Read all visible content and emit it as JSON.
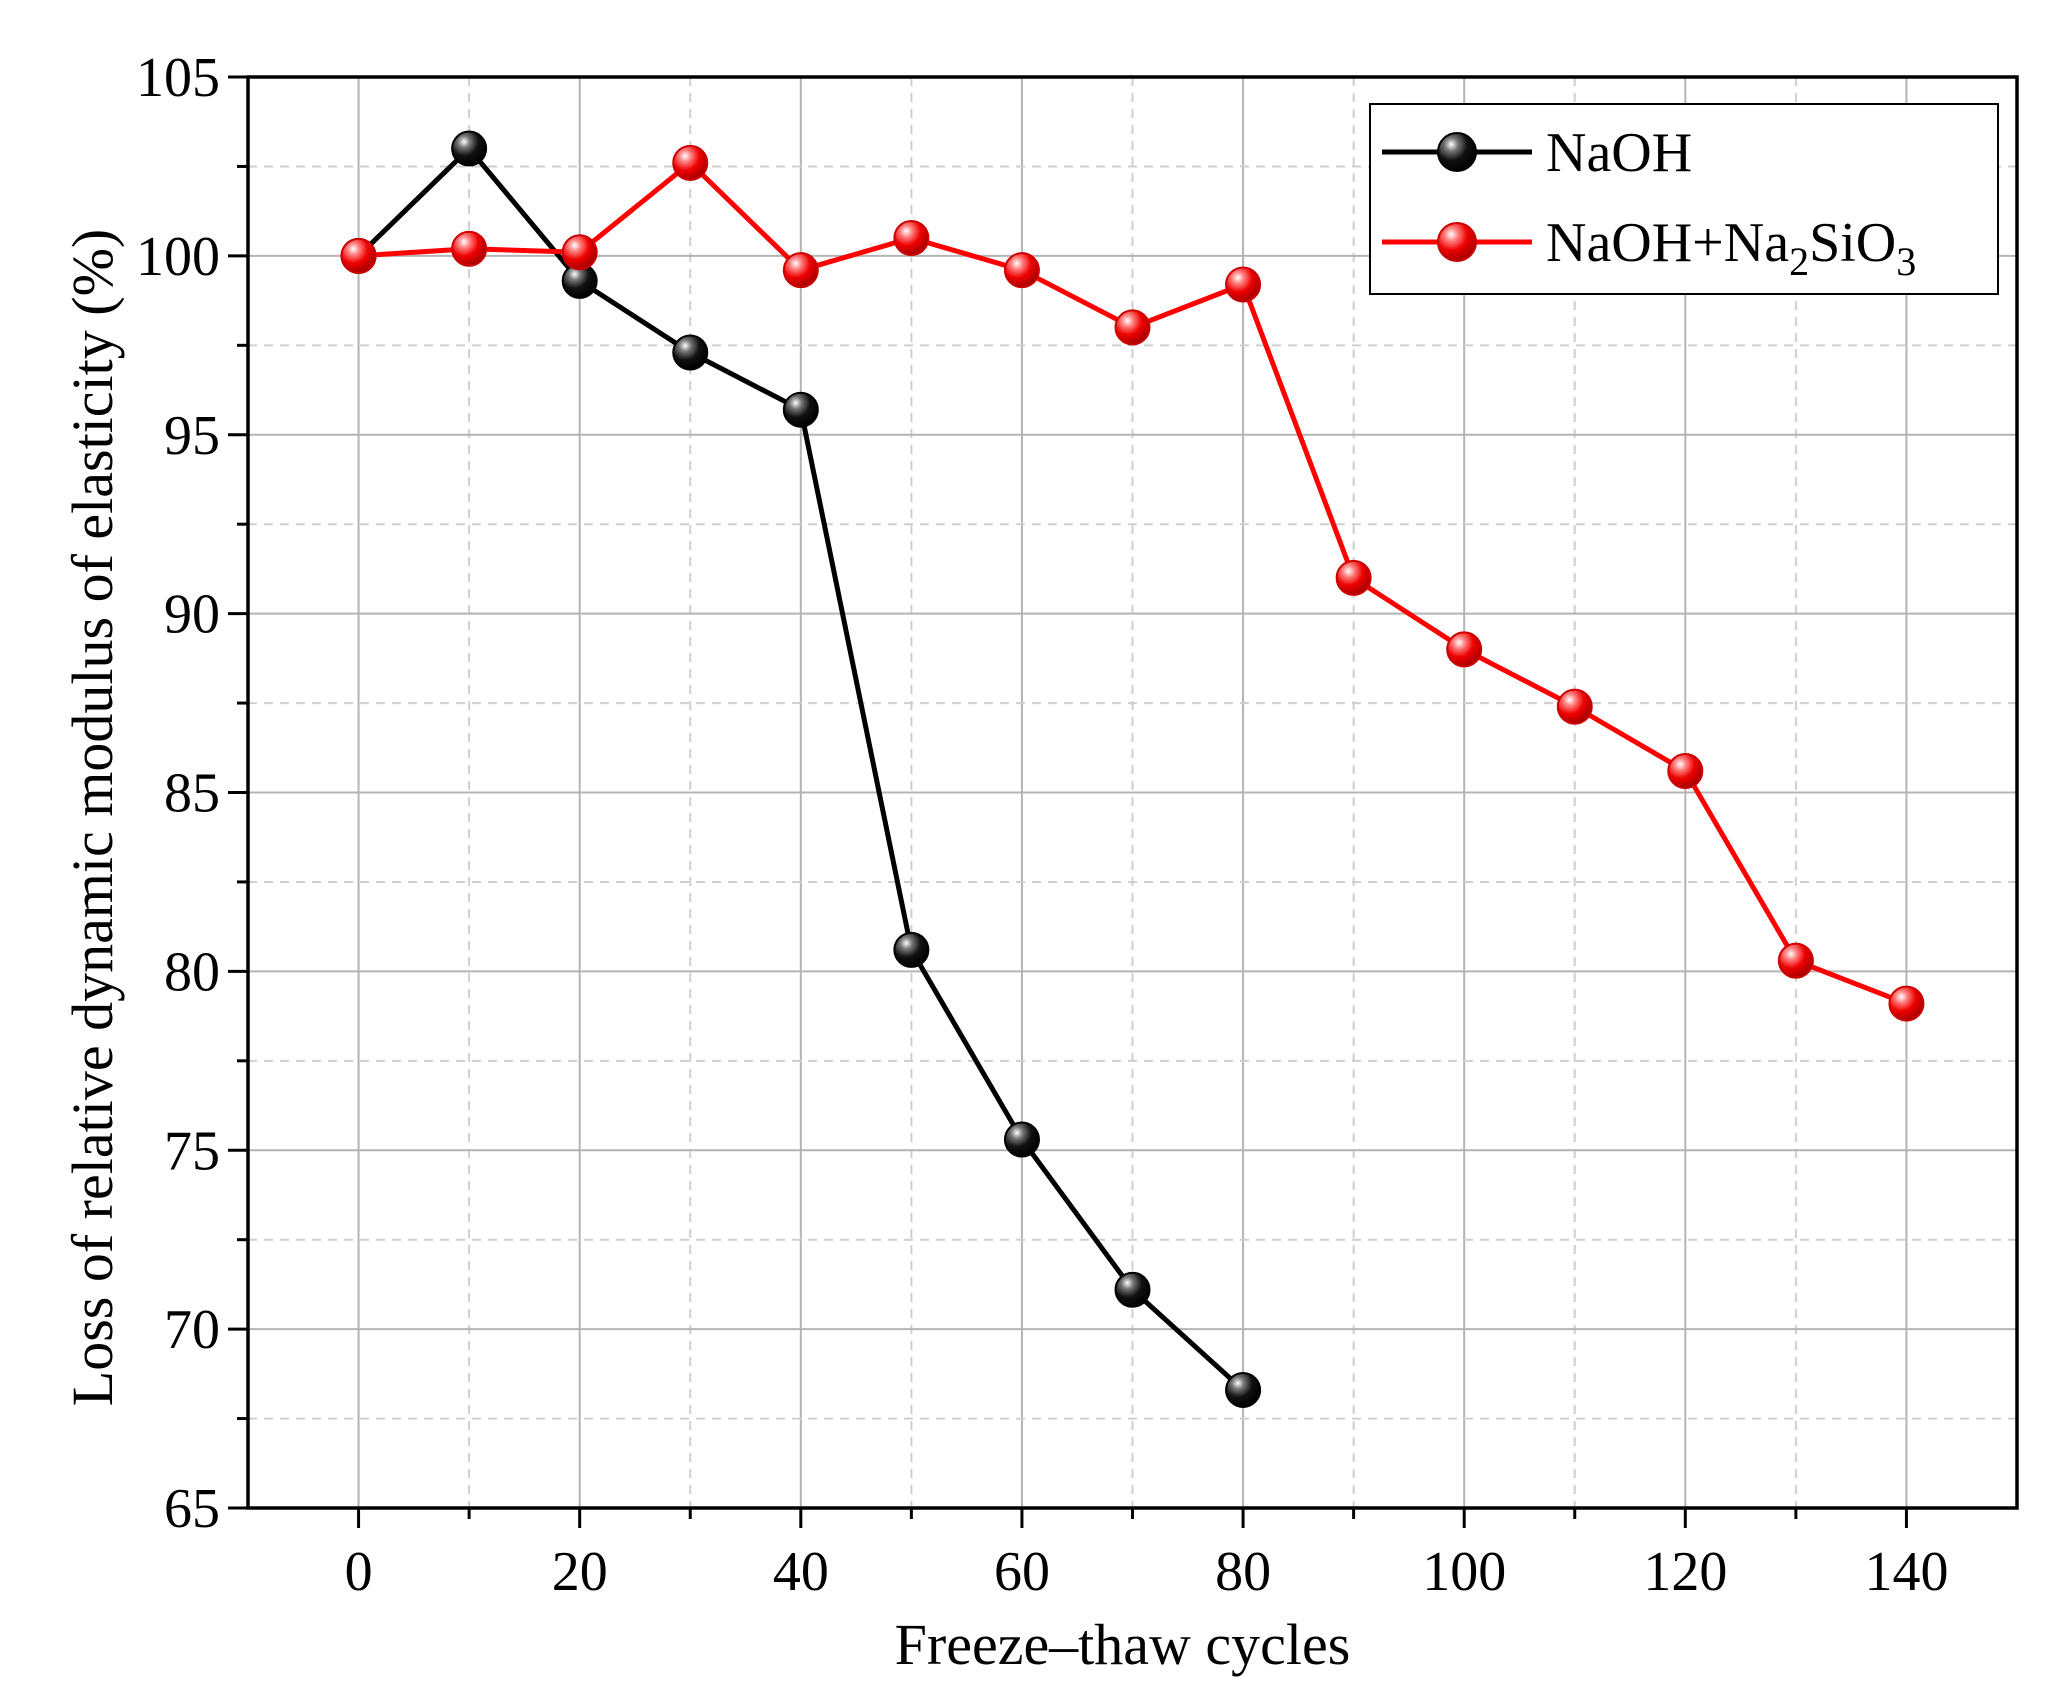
{
  "chart_data": {
    "type": "line",
    "title": "",
    "xlabel": "Freeze–thaw cycles",
    "ylabel": "Loss of relative dynamic modulus of elasticity (%)",
    "xlim": [
      -10,
      150
    ],
    "ylim": [
      65,
      105
    ],
    "xticks": [
      0,
      20,
      40,
      60,
      80,
      100,
      120,
      140
    ],
    "yticks": [
      65,
      70,
      75,
      80,
      85,
      90,
      95,
      100,
      105
    ],
    "grid": true,
    "legend_position": "top-right",
    "series": [
      {
        "name": "NaOH",
        "legend_parts": [
          "NaOH"
        ],
        "color": "#000000",
        "x": [
          0,
          10,
          20,
          30,
          40,
          50,
          60,
          70,
          80
        ],
        "values": [
          100.0,
          103.0,
          99.3,
          97.3,
          95.7,
          80.6,
          75.3,
          71.1,
          68.3
        ]
      },
      {
        "name": "NaOH+Na2SiO3",
        "legend_parts": [
          "NaOH+Na",
          "2",
          "SiO",
          "3"
        ],
        "color": "#ff0000",
        "x": [
          0,
          10,
          20,
          30,
          40,
          50,
          60,
          70,
          80,
          90,
          100,
          110,
          120,
          130,
          140
        ],
        "values": [
          100.0,
          100.2,
          100.1,
          102.6,
          99.6,
          100.5,
          99.6,
          98.0,
          99.2,
          91.0,
          89.0,
          87.4,
          85.6,
          80.3,
          79.1
        ]
      }
    ]
  }
}
